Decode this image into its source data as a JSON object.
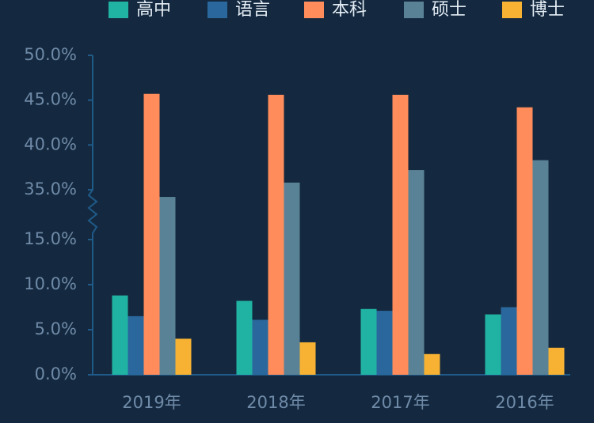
{
  "chart_data": {
    "type": "bar",
    "categories": [
      "2019年",
      "2018年",
      "2017年",
      "2016年"
    ],
    "series": [
      {
        "name": "高中",
        "color": "#20b3a3",
        "values": [
          8.8,
          8.2,
          7.3,
          6.7
        ]
      },
      {
        "name": "语言",
        "color": "#2a679c",
        "values": [
          6.5,
          6.1,
          7.1,
          7.5
        ]
      },
      {
        "name": "本科",
        "color": "#ff8c5a",
        "values": [
          45.7,
          45.6,
          45.6,
          44.2
        ]
      },
      {
        "name": "硕士",
        "color": "#5a8296",
        "values": [
          34.2,
          35.8,
          37.2,
          38.3
        ]
      },
      {
        "name": "博士",
        "color": "#f7b234",
        "values": [
          4.0,
          3.6,
          2.3,
          3.0
        ]
      }
    ],
    "ylim": [
      0,
      50
    ],
    "y_break": [
      15,
      35
    ],
    "yticks": [
      {
        "value": 0,
        "label": "0.0%"
      },
      {
        "value": 5,
        "label": "5.0%"
      },
      {
        "value": 10,
        "label": "10.0%"
      },
      {
        "value": 15,
        "label": "15.0%"
      },
      {
        "value": 35,
        "label": "35.0%"
      },
      {
        "value": 40,
        "label": "40.0%"
      },
      {
        "value": 45,
        "label": "45.0%"
      },
      {
        "value": 50,
        "label": "50.0%"
      }
    ],
    "legend": "top"
  }
}
